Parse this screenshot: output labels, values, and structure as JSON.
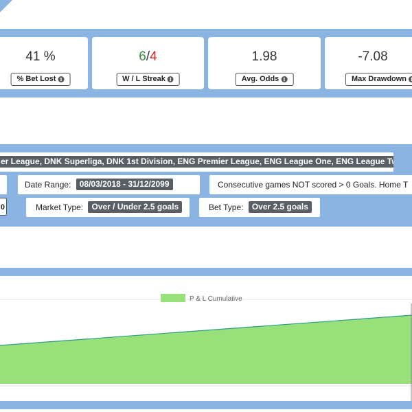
{
  "stats": [
    {
      "value": "41 %",
      "label": "% Bet Lost"
    },
    {
      "value_win": "6",
      "value_sep": "/",
      "value_loss": "4",
      "label": "W / L Streak"
    },
    {
      "value": "1.98",
      "label": "Avg. Odds"
    },
    {
      "value": "-7.08",
      "label": "Max Drawdown"
    }
  ],
  "filters": {
    "leagues": "er League, DNK Superliga, DNK 1st Division, ENG Premier League, ENG League One, ENG League Two ...",
    "left_stub_1": "",
    "date_range_label": "Date Range:",
    "date_range_value": "08/03/2018 - 31/12/2099",
    "condition": "Consecutive games NOT scored > 0 Goals. Home T",
    "left_stub_2": "0",
    "market_type_label": "Market Type:",
    "market_type_value": "Over / Under 2.5 goals",
    "bet_type_label": "Bet Type:",
    "bet_type_value": "Over 2.5 goals"
  },
  "chart": {
    "legend": "P & L Cumulative"
  },
  "colors": {
    "band": "#8cb4e2",
    "area_fill": "#97e07a",
    "area_line": "#2e9a8a",
    "win": "#3c8a3c",
    "loss": "#dd2222"
  },
  "icons": {
    "info": "info-circle-icon"
  }
}
